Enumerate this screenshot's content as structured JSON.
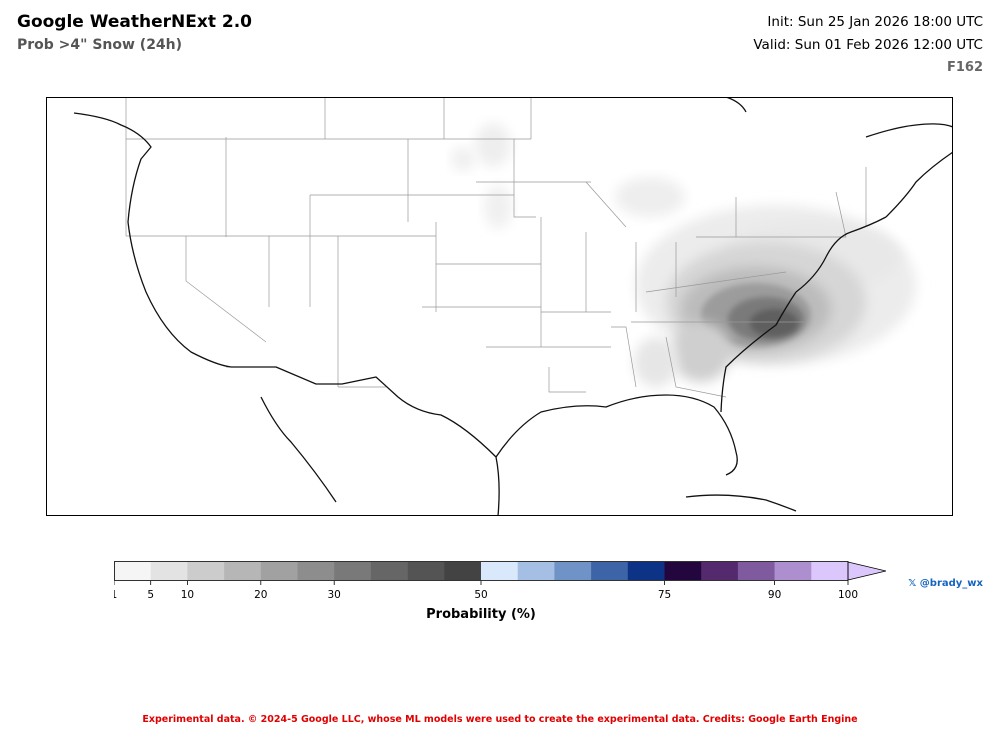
{
  "header": {
    "title": "Google WeatherNExt 2.0",
    "subtitle": "Prob >4\" Snow (24h)",
    "init": "Init: Sun 25 Jan 2026 18:00 UTC",
    "valid": "Valid: Sun 01 Feb 2026 12:00 UTC",
    "forecast_hour": "F162"
  },
  "colorbar": {
    "label": "Probability (%)",
    "colors": [
      "#f5f5f5",
      "#e3e3e3",
      "#cccccc",
      "#b6b6b6",
      "#a1a1a1",
      "#8d8d8d",
      "#797979",
      "#666666",
      "#545454",
      "#434343",
      "#d9e8fb",
      "#a4bfe3",
      "#6f93c7",
      "#3d64a6",
      "#0d3386",
      "#24063f",
      "#55296e",
      "#7f5a9f",
      "#ad8fd0",
      "#dcc7fc"
    ],
    "ticks": [
      "1",
      "5",
      "10",
      "20",
      "30",
      "50",
      "75",
      "90",
      "100"
    ]
  },
  "credits": {
    "handle": "𝕏 @brady_wx",
    "footer": "Experimental data. © 2024-5 Google LLC, whose ML models were used to create the experimental data. Credits: Google Earth Engine"
  },
  "map_legend": {
    "region": "Contiguous United States",
    "highest_probability_area": "Virginia / North Carolina"
  }
}
